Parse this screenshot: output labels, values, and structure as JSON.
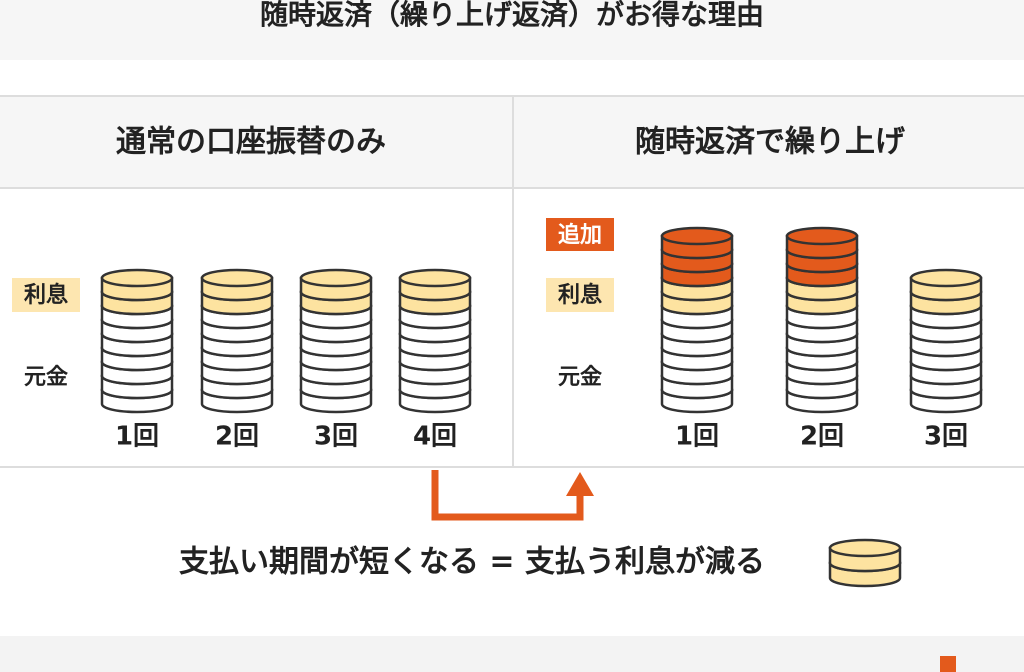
{
  "title": "随時返済（繰り上げ返済）がお得な理由",
  "panels": [
    {
      "header": "通常の口座振替のみ",
      "interest_label": "利息",
      "principal_label": "元金",
      "counts": [
        "1回",
        "2回",
        "3回",
        "4回"
      ]
    },
    {
      "header": "随時返済で繰り上げ",
      "extra_label": "追加",
      "interest_label": "利息",
      "principal_label": "元金",
      "counts": [
        "1回",
        "2回",
        "3回"
      ]
    }
  ],
  "conclusion": "支払い期間が短くなる = 支払う利息が減る"
}
